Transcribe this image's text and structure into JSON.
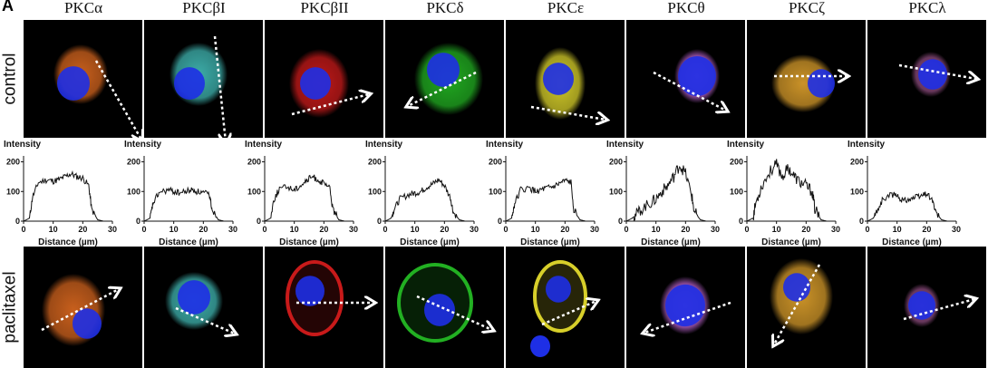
{
  "panel_letter": "A",
  "isoforms": [
    "PKCα",
    "PKCβI",
    "PKCβII",
    "PKCδ",
    "PKCε",
    "PKCθ",
    "PKCζ",
    "PKCλ"
  ],
  "row_labels": {
    "control": "control",
    "treated": "paclitaxel"
  },
  "colors": {
    "nucleus": "#1e2fe6",
    "stains": [
      "#d2641e",
      "#3fb4b0",
      "#c81a1a",
      "#22b022",
      "#d7cf2a",
      "#b560c8",
      "#d59a2a",
      "#8b4a7c"
    ]
  },
  "chart_data": {
    "type": "line",
    "panels": 8,
    "titles": [
      "PKCα",
      "PKCβI",
      "PKCβII",
      "PKCδ",
      "PKCε",
      "PKCθ",
      "PKCζ",
      "PKCλ"
    ],
    "ylabel": "Intensity",
    "xlabel": "Distance  (µm)",
    "xlim": [
      0,
      30
    ],
    "ylim": [
      0,
      220
    ],
    "xticks": [
      0,
      10,
      20,
      30
    ],
    "yticks": [
      0,
      100,
      200
    ],
    "series": [
      {
        "name": "PKCα",
        "x": [
          0,
          2,
          3,
          5,
          8,
          10,
          12,
          14,
          16,
          18,
          20,
          22,
          23,
          25,
          27
        ],
        "y": [
          0,
          10,
          80,
          130,
          140,
          135,
          140,
          150,
          160,
          150,
          145,
          120,
          40,
          5,
          0
        ]
      },
      {
        "name": "PKCβI",
        "x": [
          0,
          2,
          3,
          5,
          8,
          10,
          12,
          14,
          16,
          18,
          20,
          22,
          23,
          25,
          27
        ],
        "y": [
          0,
          10,
          60,
          95,
          105,
          100,
          95,
          100,
          105,
          100,
          95,
          90,
          40,
          5,
          0
        ]
      },
      {
        "name": "PKCβII",
        "x": [
          0,
          2,
          3,
          5,
          8,
          10,
          12,
          14,
          16,
          18,
          20,
          22,
          23,
          25,
          27
        ],
        "y": [
          0,
          10,
          70,
          110,
          115,
          105,
          120,
          135,
          150,
          140,
          125,
          110,
          40,
          5,
          0
        ]
      },
      {
        "name": "PKCδ",
        "x": [
          0,
          2,
          3,
          5,
          8,
          10,
          12,
          14,
          16,
          18,
          20,
          22,
          23,
          25,
          27
        ],
        "y": [
          0,
          10,
          40,
          75,
          90,
          95,
          100,
          115,
          125,
          140,
          120,
          80,
          30,
          5,
          0
        ]
      },
      {
        "name": "PKCε",
        "x": [
          0,
          2,
          3,
          5,
          8,
          10,
          12,
          14,
          16,
          18,
          20,
          22,
          23,
          25,
          27
        ],
        "y": [
          0,
          10,
          60,
          105,
          110,
          100,
          105,
          110,
          115,
          125,
          135,
          130,
          40,
          5,
          0
        ]
      },
      {
        "name": "PKCθ",
        "x": [
          0,
          2,
          3,
          5,
          8,
          10,
          12,
          14,
          16,
          18,
          20,
          22,
          23,
          25,
          27
        ],
        "y": [
          0,
          10,
          20,
          40,
          60,
          75,
          100,
          120,
          150,
          190,
          160,
          90,
          30,
          5,
          0
        ]
      },
      {
        "name": "PKCζ",
        "x": [
          0,
          2,
          3,
          5,
          8,
          10,
          12,
          14,
          16,
          18,
          20,
          22,
          23,
          25,
          27
        ],
        "y": [
          0,
          10,
          60,
          120,
          170,
          190,
          150,
          180,
          150,
          130,
          120,
          100,
          40,
          5,
          0
        ]
      },
      {
        "name": "PKCλ",
        "x": [
          0,
          2,
          3,
          5,
          8,
          10,
          12,
          14,
          16,
          18,
          20,
          22,
          23,
          25,
          27
        ],
        "y": [
          0,
          10,
          30,
          70,
          90,
          85,
          70,
          75,
          80,
          85,
          95,
          70,
          30,
          5,
          0
        ]
      }
    ]
  }
}
